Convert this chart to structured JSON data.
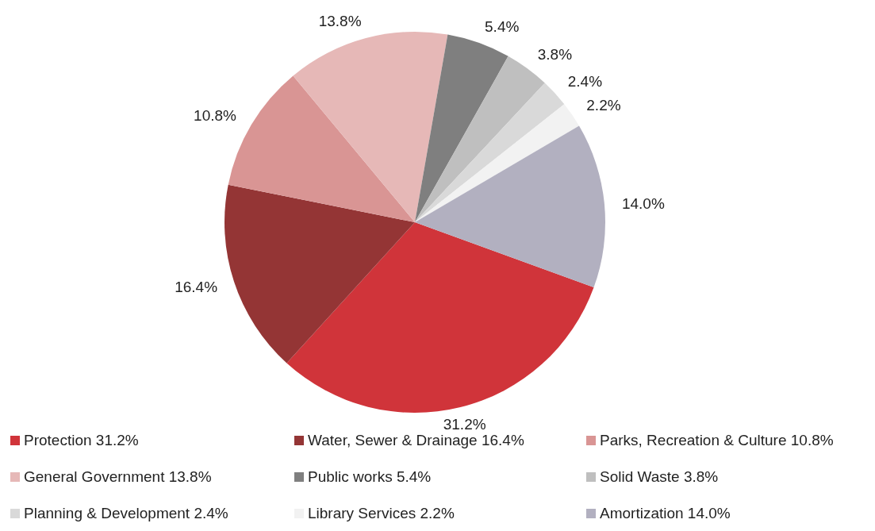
{
  "chart_data": {
    "type": "pie",
    "categories": [
      "Protection 31.2%",
      "Water, Sewer & Drainage 16.4%",
      "Parks, Recreation & Culture 10.8%",
      "General Government 13.8%",
      "Public works 5.4%",
      "Solid Waste 3.8%",
      "Planning & Development 2.4%",
      "Library Services 2.2%",
      "Amortization 14.0%"
    ],
    "values": [
      31.2,
      16.4,
      10.8,
      13.8,
      5.4,
      3.8,
      2.4,
      2.2,
      14.0
    ],
    "value_labels": [
      "31.2%",
      "16.4%",
      "10.8%",
      "13.8%",
      "5.4%",
      "3.8%",
      "2.4%",
      "2.2%",
      "14.0%"
    ],
    "colors": [
      "#d0343a",
      "#943535",
      "#d99594",
      "#e6b8b7",
      "#7f7f7f",
      "#bfbfbf",
      "#d9d9d9",
      "#f2f2f2",
      "#b2b0c0"
    ],
    "legend": "bottom"
  }
}
